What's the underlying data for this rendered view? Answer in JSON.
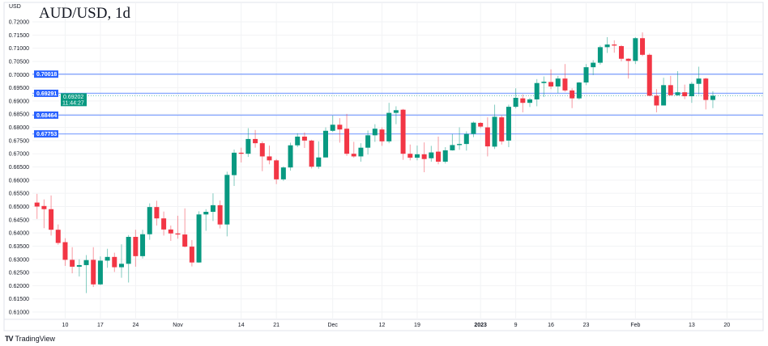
{
  "header": {
    "title": "AUD/USD, 1d",
    "unit": "USD"
  },
  "branding": {
    "logo_text": "TradingView",
    "logo_mark": "TV"
  },
  "colors": {
    "up": "#089981",
    "down": "#F23645",
    "level_line": "#2962FF",
    "current_price": "#089981"
  },
  "chart_data": {
    "type": "candlestick",
    "title": "AUD/USD, 1d",
    "ylabel": "USD",
    "ylim": [
      0.6085,
      0.7215
    ],
    "grid": true,
    "y_ticks": [
      "0.72000",
      "0.71500",
      "0.71000",
      "0.70500",
      "0.70000",
      "0.69500",
      "0.69000",
      "0.68500",
      "0.68000",
      "0.67500",
      "0.67000",
      "0.66500",
      "0.66000",
      "0.65500",
      "0.65000",
      "0.64500",
      "0.64000",
      "0.63500",
      "0.63000",
      "0.62500",
      "0.62000",
      "0.61500",
      "0.61000"
    ],
    "x_ticks": [
      {
        "label": "10",
        "bar": 4
      },
      {
        "label": "17",
        "bar": 9
      },
      {
        "label": "24",
        "bar": 14
      },
      {
        "label": "Nov",
        "bar": 20
      },
      {
        "label": "14",
        "bar": 29
      },
      {
        "label": "21",
        "bar": 34
      },
      {
        "label": "Dec",
        "bar": 42
      },
      {
        "label": "12",
        "bar": 49
      },
      {
        "label": "19",
        "bar": 54
      },
      {
        "label": "2023",
        "bar": 63,
        "bold": true
      },
      {
        "label": "9",
        "bar": 68
      },
      {
        "label": "16",
        "bar": 73
      },
      {
        "label": "23",
        "bar": 78
      },
      {
        "label": "Feb",
        "bar": 85
      },
      {
        "label": "13",
        "bar": 93
      },
      {
        "label": "20",
        "bar": 98
      }
    ],
    "ohlc": [
      [
        0.6515,
        0.6548,
        0.6453,
        0.65
      ],
      [
        0.6502,
        0.6527,
        0.6418,
        0.649
      ],
      [
        0.649,
        0.6542,
        0.639,
        0.6412
      ],
      [
        0.6412,
        0.6432,
        0.6355,
        0.6362
      ],
      [
        0.6365,
        0.638,
        0.6275,
        0.6298
      ],
      [
        0.6298,
        0.6346,
        0.6247,
        0.6272
      ],
      [
        0.6272,
        0.63,
        0.6235,
        0.6278
      ],
      [
        0.6278,
        0.6316,
        0.6172,
        0.6297
      ],
      [
        0.6298,
        0.6346,
        0.6195,
        0.6205
      ],
      [
        0.6205,
        0.6311,
        0.6202,
        0.6295
      ],
      [
        0.6295,
        0.634,
        0.6268,
        0.6309
      ],
      [
        0.6309,
        0.6325,
        0.6252,
        0.627
      ],
      [
        0.627,
        0.6357,
        0.623,
        0.6283
      ],
      [
        0.6283,
        0.6392,
        0.6212,
        0.6385
      ],
      [
        0.6385,
        0.6412,
        0.6272,
        0.6312
      ],
      [
        0.6312,
        0.6412,
        0.6303,
        0.6395
      ],
      [
        0.6395,
        0.6512,
        0.6374,
        0.6498
      ],
      [
        0.6498,
        0.6522,
        0.6428,
        0.6455
      ],
      [
        0.6455,
        0.6481,
        0.639,
        0.6413
      ],
      [
        0.6413,
        0.6428,
        0.637,
        0.6398
      ],
      [
        0.6398,
        0.6465,
        0.6378,
        0.6394
      ],
      [
        0.6394,
        0.6493,
        0.6345,
        0.6348
      ],
      [
        0.6348,
        0.6373,
        0.6273,
        0.6288
      ],
      [
        0.6288,
        0.6482,
        0.6287,
        0.647
      ],
      [
        0.647,
        0.649,
        0.6408,
        0.648
      ],
      [
        0.648,
        0.655,
        0.6445,
        0.6505
      ],
      [
        0.6505,
        0.6523,
        0.6417,
        0.6432
      ],
      [
        0.6432,
        0.6632,
        0.6387,
        0.662
      ],
      [
        0.6619,
        0.6716,
        0.6578,
        0.6704
      ],
      [
        0.6704,
        0.6723,
        0.6667,
        0.67
      ],
      [
        0.67,
        0.6797,
        0.6688,
        0.6756
      ],
      [
        0.6756,
        0.679,
        0.6723,
        0.674
      ],
      [
        0.674,
        0.6747,
        0.6634,
        0.669
      ],
      [
        0.669,
        0.6731,
        0.666,
        0.6675
      ],
      [
        0.6675,
        0.668,
        0.6585,
        0.6603
      ],
      [
        0.6603,
        0.6652,
        0.6597,
        0.6648
      ],
      [
        0.6648,
        0.6742,
        0.6636,
        0.6732
      ],
      [
        0.6732,
        0.6778,
        0.6725,
        0.6765
      ],
      [
        0.6765,
        0.6781,
        0.6722,
        0.675
      ],
      [
        0.675,
        0.6753,
        0.6644,
        0.6651
      ],
      [
        0.6651,
        0.6747,
        0.6643,
        0.6686
      ],
      [
        0.6686,
        0.68,
        0.6686,
        0.6787
      ],
      [
        0.6787,
        0.6845,
        0.6783,
        0.681
      ],
      [
        0.681,
        0.6835,
        0.6742,
        0.6792
      ],
      [
        0.6795,
        0.6851,
        0.6692,
        0.67
      ],
      [
        0.67,
        0.6745,
        0.6685,
        0.669
      ],
      [
        0.669,
        0.674,
        0.667,
        0.6723
      ],
      [
        0.6723,
        0.6788,
        0.6697,
        0.677
      ],
      [
        0.677,
        0.6812,
        0.6745,
        0.6795
      ],
      [
        0.6792,
        0.68,
        0.673,
        0.6747
      ],
      [
        0.6747,
        0.6893,
        0.674,
        0.6855
      ],
      [
        0.6855,
        0.688,
        0.6812,
        0.6865
      ],
      [
        0.6867,
        0.687,
        0.6677,
        0.67
      ],
      [
        0.67,
        0.6735,
        0.6675,
        0.6685
      ],
      [
        0.6685,
        0.6731,
        0.6675,
        0.6698
      ],
      [
        0.6698,
        0.6743,
        0.663,
        0.668
      ],
      [
        0.6683,
        0.673,
        0.667,
        0.6705
      ],
      [
        0.6708,
        0.6765,
        0.666,
        0.667
      ],
      [
        0.667,
        0.6725,
        0.6663,
        0.6713
      ],
      [
        0.6713,
        0.6775,
        0.6712,
        0.6733
      ],
      [
        0.6733,
        0.68,
        0.6715,
        0.6737
      ],
      [
        0.6737,
        0.6785,
        0.6712,
        0.6775
      ],
      [
        0.6775,
        0.6822,
        0.6763,
        0.6818
      ],
      [
        0.6817,
        0.682,
        0.6797,
        0.6803
      ],
      [
        0.68,
        0.6838,
        0.669,
        0.6728
      ],
      [
        0.6727,
        0.6886,
        0.6718,
        0.684
      ],
      [
        0.6838,
        0.6845,
        0.6735,
        0.6747
      ],
      [
        0.675,
        0.6886,
        0.6725,
        0.6878
      ],
      [
        0.6878,
        0.6948,
        0.6872,
        0.6912
      ],
      [
        0.691,
        0.6925,
        0.6857,
        0.6893
      ],
      [
        0.6893,
        0.6912,
        0.6877,
        0.6906
      ],
      [
        0.6906,
        0.6983,
        0.688,
        0.6968
      ],
      [
        0.6968,
        0.6993,
        0.6915,
        0.6973
      ],
      [
        0.6972,
        0.702,
        0.6945,
        0.6955
      ],
      [
        0.6955,
        0.6995,
        0.693,
        0.6985
      ],
      [
        0.6985,
        0.704,
        0.6935,
        0.694
      ],
      [
        0.694,
        0.6948,
        0.6873,
        0.691
      ],
      [
        0.691,
        0.6972,
        0.6905,
        0.697
      ],
      [
        0.697,
        0.704,
        0.696,
        0.7028
      ],
      [
        0.7028,
        0.7055,
        0.6998,
        0.7045
      ],
      [
        0.7045,
        0.711,
        0.7038,
        0.7104
      ],
      [
        0.7104,
        0.7142,
        0.7082,
        0.7114
      ],
      [
        0.7114,
        0.713,
        0.7083,
        0.711
      ],
      [
        0.7108,
        0.7112,
        0.705,
        0.706
      ],
      [
        0.706,
        0.7062,
        0.6985,
        0.7052
      ],
      [
        0.7052,
        0.7142,
        0.704,
        0.7138
      ],
      [
        0.7138,
        0.716,
        0.707,
        0.7075
      ],
      [
        0.7075,
        0.708,
        0.6918,
        0.692
      ],
      [
        0.692,
        0.6945,
        0.6857,
        0.6883
      ],
      [
        0.6883,
        0.6988,
        0.6883,
        0.696
      ],
      [
        0.696,
        0.6995,
        0.692,
        0.6922
      ],
      [
        0.6922,
        0.7013,
        0.692,
        0.6933
      ],
      [
        0.6933,
        0.6962,
        0.6907,
        0.6918
      ],
      [
        0.6918,
        0.6972,
        0.6893,
        0.6965
      ],
      [
        0.6965,
        0.703,
        0.6925,
        0.6985
      ],
      [
        0.6985,
        0.6988,
        0.6868,
        0.6904
      ],
      [
        0.6904,
        0.6937,
        0.6873,
        0.692
      ]
    ],
    "levels": [
      "0.70018",
      "0.69291",
      "0.68464",
      "0.67753"
    ],
    "current_price": {
      "value": "0.69202",
      "countdown": "11:44:27"
    }
  }
}
